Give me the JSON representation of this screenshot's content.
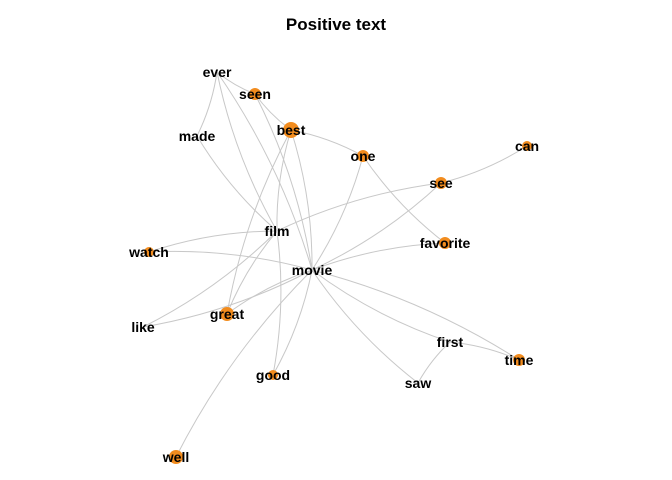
{
  "title": "Positive text",
  "colors": {
    "node": "#f28c1e",
    "edge": "#c8c8c8",
    "label": "#000000"
  },
  "nodes": [
    {
      "id": "ever",
      "label": "ever",
      "dot": false
    },
    {
      "id": "seen",
      "label": "seen",
      "dot": true
    },
    {
      "id": "made",
      "label": "made",
      "dot": false
    },
    {
      "id": "best",
      "label": "best",
      "dot": true
    },
    {
      "id": "one",
      "label": "one",
      "dot": true
    },
    {
      "id": "can",
      "label": "can",
      "dot": true
    },
    {
      "id": "see",
      "label": "see",
      "dot": true
    },
    {
      "id": "film",
      "label": "film",
      "dot": false
    },
    {
      "id": "favorite",
      "label": "favorite",
      "dot": true
    },
    {
      "id": "watch",
      "label": "watch",
      "dot": true
    },
    {
      "id": "movie",
      "label": "movie",
      "dot": false
    },
    {
      "id": "great",
      "label": "great",
      "dot": true
    },
    {
      "id": "like",
      "label": "like",
      "dot": false
    },
    {
      "id": "first",
      "label": "first",
      "dot": false
    },
    {
      "id": "time",
      "label": "time",
      "dot": true
    },
    {
      "id": "good",
      "label": "good",
      "dot": true
    },
    {
      "id": "saw",
      "label": "saw",
      "dot": false
    },
    {
      "id": "well",
      "label": "well",
      "dot": true
    }
  ],
  "edges": [
    [
      "ever",
      "seen"
    ],
    [
      "ever",
      "made"
    ],
    [
      "ever",
      "film"
    ],
    [
      "ever",
      "movie"
    ],
    [
      "seen",
      "best"
    ],
    [
      "seen",
      "movie"
    ],
    [
      "made",
      "film"
    ],
    [
      "best",
      "one"
    ],
    [
      "best",
      "film"
    ],
    [
      "best",
      "movie"
    ],
    [
      "best",
      "great"
    ],
    [
      "one",
      "movie"
    ],
    [
      "one",
      "favorite"
    ],
    [
      "can",
      "see"
    ],
    [
      "see",
      "film"
    ],
    [
      "see",
      "movie"
    ],
    [
      "film",
      "watch"
    ],
    [
      "film",
      "like"
    ],
    [
      "film",
      "great"
    ],
    [
      "film",
      "good"
    ],
    [
      "movie",
      "watch"
    ],
    [
      "movie",
      "favorite"
    ],
    [
      "movie",
      "great"
    ],
    [
      "movie",
      "like"
    ],
    [
      "movie",
      "first"
    ],
    [
      "movie",
      "time"
    ],
    [
      "movie",
      "saw"
    ],
    [
      "movie",
      "good"
    ],
    [
      "movie",
      "well"
    ],
    [
      "first",
      "time"
    ],
    [
      "first",
      "saw"
    ]
  ]
}
